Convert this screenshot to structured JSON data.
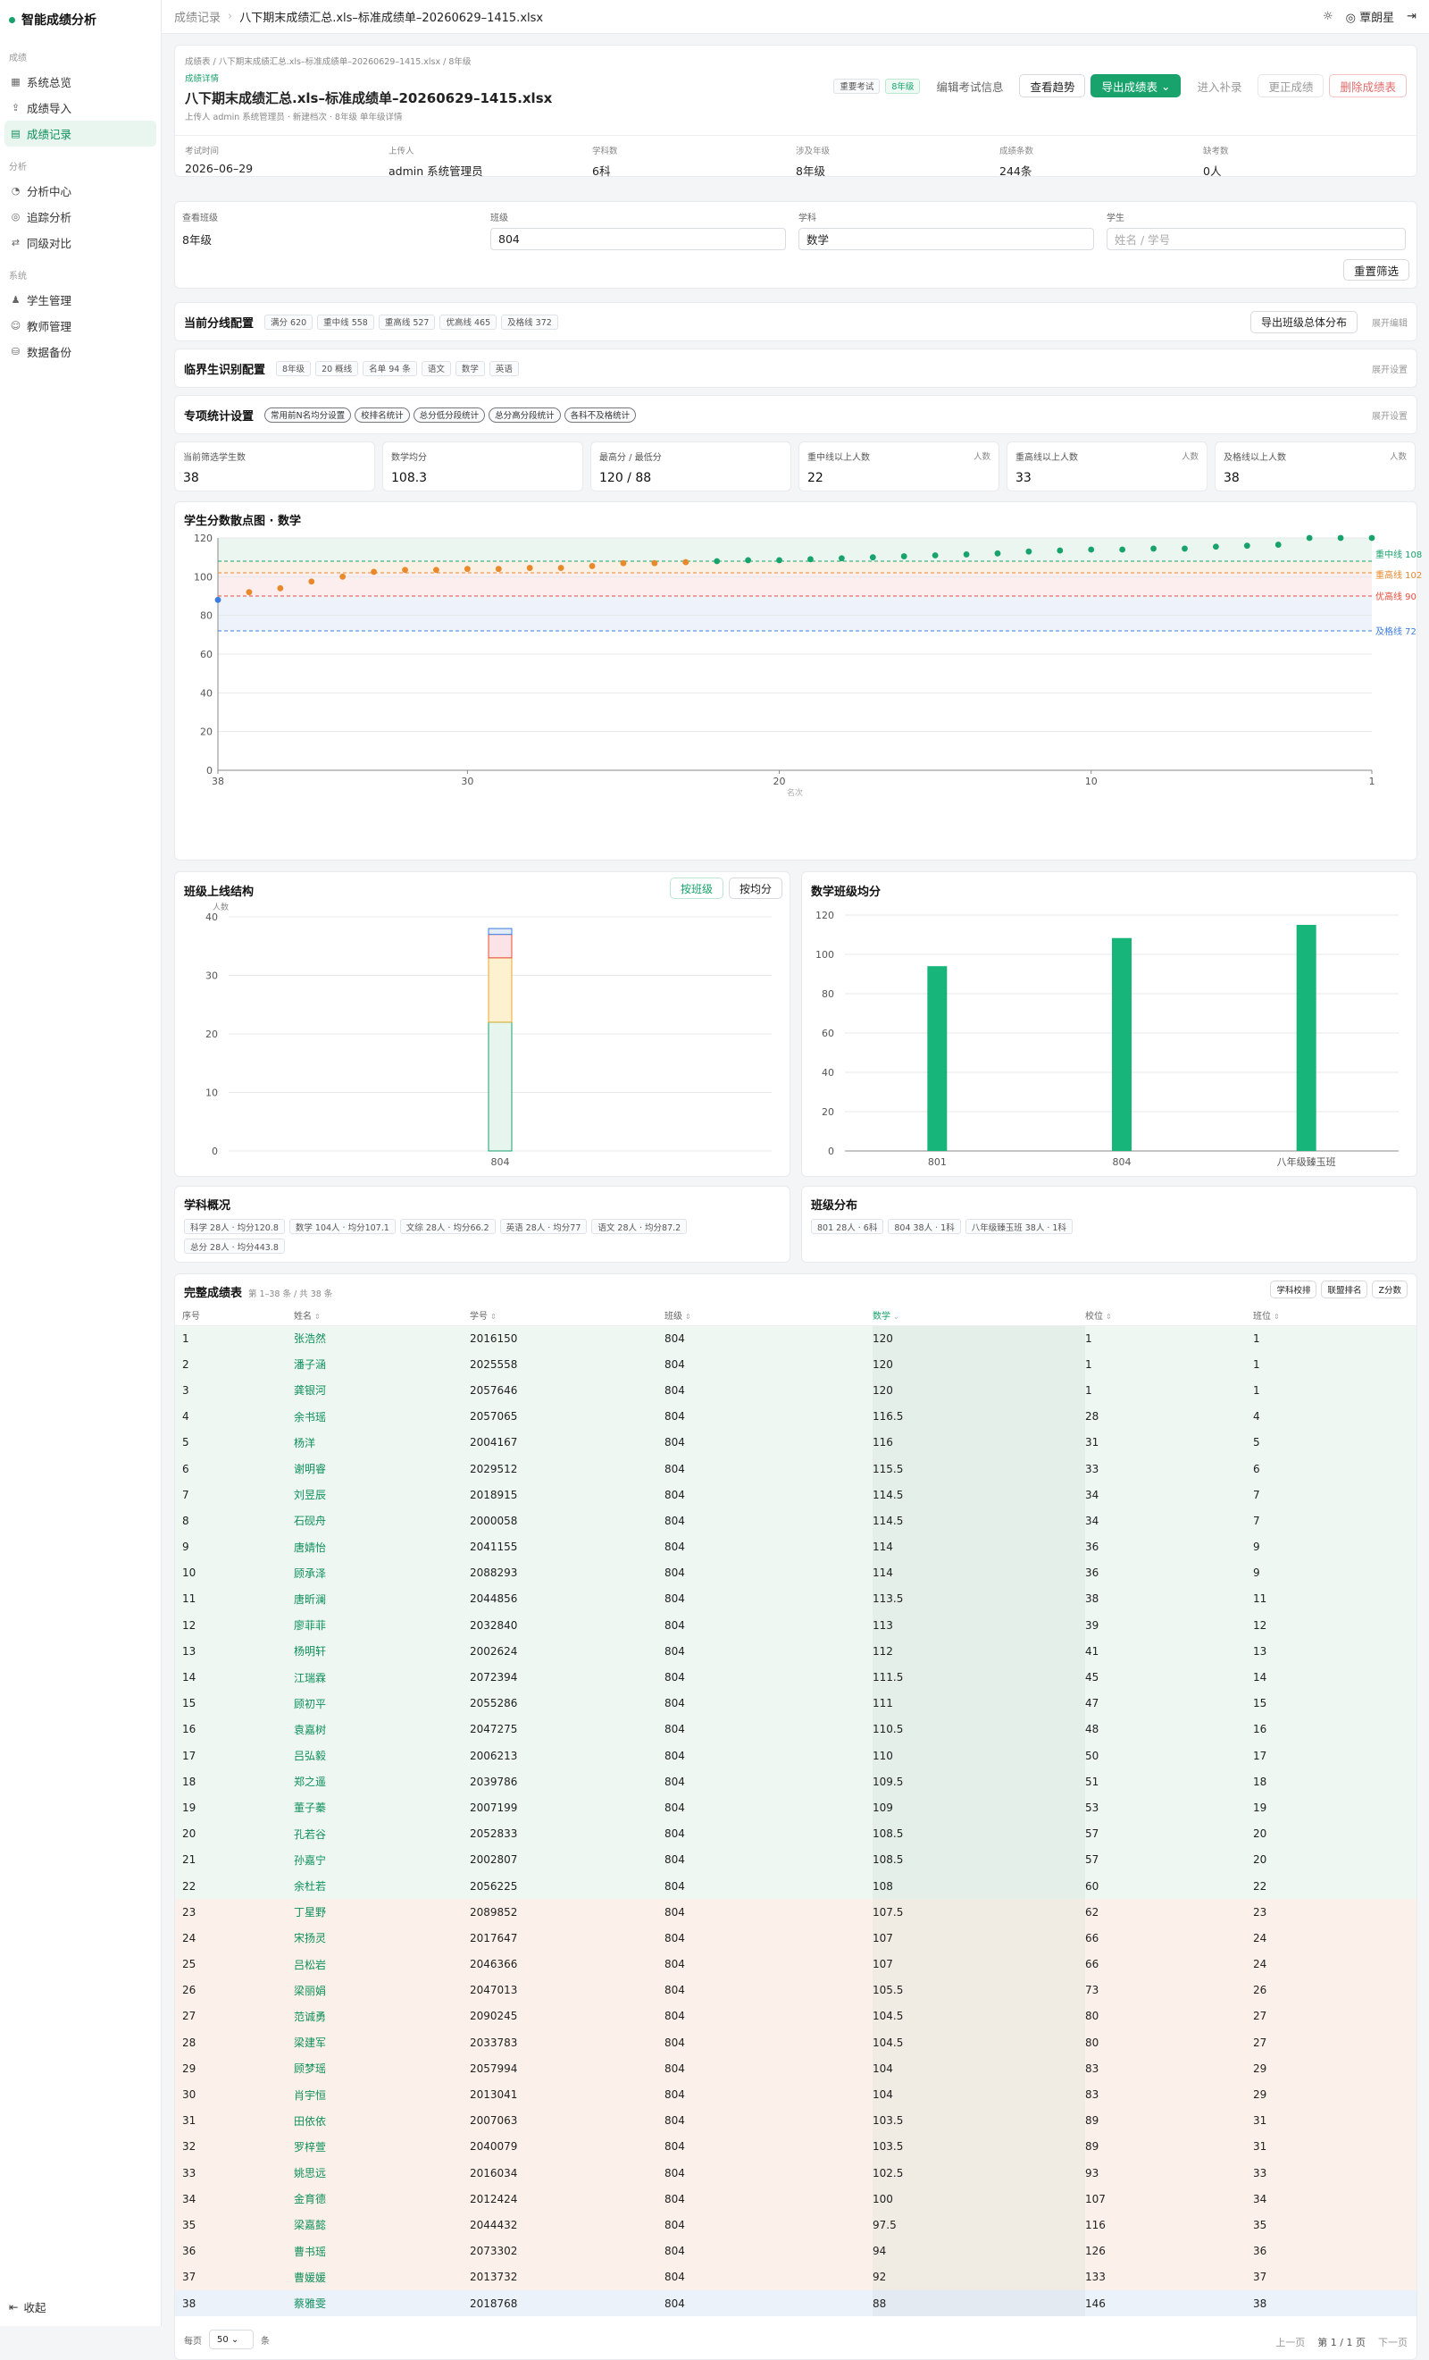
{
  "app": {
    "name": "智能成绩分析"
  },
  "sidebar": {
    "groups": [
      {
        "label": "成绩",
        "items": [
          {
            "label": "系统总览",
            "icon": "grid-icon"
          },
          {
            "label": "成绩导入",
            "icon": "upload-icon"
          },
          {
            "label": "成绩记录",
            "icon": "doc-icon",
            "active": true
          }
        ]
      },
      {
        "label": "分析",
        "items": [
          {
            "label": "分析中心",
            "icon": "chart-icon"
          },
          {
            "label": "追踪分析",
            "icon": "target-icon"
          },
          {
            "label": "同级对比",
            "icon": "compare-icon"
          }
        ]
      },
      {
        "label": "系统",
        "items": [
          {
            "label": "学生管理",
            "icon": "users-icon"
          },
          {
            "label": "教师管理",
            "icon": "teacher-icon"
          },
          {
            "label": "数据备份",
            "icon": "database-icon"
          }
        ]
      }
    ],
    "collapse_label": "收起"
  },
  "topbar": {
    "crumb_parent": "成绩记录",
    "crumb_current": "八下期末成绩汇总.xls–标准成绩单–20260629–1415.xlsx",
    "user": "覃朗星"
  },
  "record": {
    "path": "成绩表 / 八下期末成绩汇总.xls–标准成绩单–20260629–1415.xlsx / 8年级",
    "sub_label": "成绩详情",
    "title": "八下期末成绩汇总.xls–标准成绩单–20260629–1415.xlsx",
    "meta": "上传人 admin 系统管理员 · 新建档次 · 8年级 单年级详情",
    "tags": [
      "重要考试",
      "8年级"
    ],
    "actions": {
      "edit": "编辑考试信息",
      "trend": "查看趋势",
      "export": "导出成绩表",
      "promote": "进入补录",
      "correct": "更正成绩",
      "delete": "删除成绩表"
    },
    "stats": [
      {
        "label": "考试时间",
        "value": "2026–06–29"
      },
      {
        "label": "上传人",
        "value": "admin 系统管理员"
      },
      {
        "label": "学科数",
        "value": "6科"
      },
      {
        "label": "涉及年级",
        "value": "8年级"
      },
      {
        "label": "成绩条数",
        "value": "244条"
      },
      {
        "label": "缺考数",
        "value": "0人"
      }
    ]
  },
  "filters": {
    "grade": {
      "label": "查看班级",
      "value": "8年级"
    },
    "class": {
      "label": "班级",
      "value": "804"
    },
    "subject": {
      "label": "学科",
      "value": "数学"
    },
    "student": {
      "label": "学生",
      "placeholder": "姓名 / 学号"
    },
    "reset": "重置筛选"
  },
  "score_lines": {
    "title": "当前分线配置",
    "tags": [
      "满分 620",
      "重中线 558",
      "重高线 527",
      "优高线 465",
      "及格线 372"
    ],
    "action": "导出班级总体分布",
    "expand": "展开编辑"
  },
  "critical": {
    "title": "临界生识别配置",
    "tags": [
      "8年级",
      "20 概线",
      "名单 94 条",
      "语文",
      "数学",
      "英语"
    ],
    "expand": "展开设置"
  },
  "special": {
    "title": "专项统计设置",
    "tags": [
      "常用前N名均分设置",
      "校排名统计",
      "总分低分段统计",
      "总分高分段统计",
      "各科不及格统计"
    ],
    "expand": "展开设置"
  },
  "kpis": [
    {
      "label": "当前筛选学生数",
      "value": "38",
      "unit": ""
    },
    {
      "label": "数学均分",
      "value": "108.3",
      "unit": ""
    },
    {
      "label": "最高分 / 最低分",
      "value": "120 / 88",
      "unit": ""
    },
    {
      "label": "重中线以上人数",
      "value": "22",
      "unit": "人数"
    },
    {
      "label": "重高线以上人数",
      "value": "33",
      "unit": "人数"
    },
    {
      "label": "及格线以上人数",
      "value": "38",
      "unit": "人数"
    }
  ],
  "scatter": {
    "title": "学生分数散点图 · 数学",
    "xlabel": "名次",
    "lines": [
      {
        "name": "重中线 108",
        "value": 108,
        "color": "#18a36c"
      },
      {
        "name": "重高线 102",
        "value": 102,
        "color": "#e8892b"
      },
      {
        "name": "优高线 90",
        "value": 90,
        "color": "#e84b3a"
      },
      {
        "name": "及格线 72",
        "value": 72,
        "color": "#3b7de0"
      }
    ]
  },
  "stack": {
    "title": "班级上线结构",
    "toggle": [
      "按班级",
      "按均分"
    ],
    "unit": "人数"
  },
  "avg": {
    "title": "数学班级均分"
  },
  "subject_overview": {
    "title": "学科概况",
    "tags": [
      "科学 28人 · 均分120.8",
      "数学 104人 · 均分107.1",
      "文综 28人 · 均分66.2",
      "英语 28人 · 均分77",
      "语文 28人 · 均分87.2",
      "总分 28人 · 均分443.8"
    ]
  },
  "class_dist": {
    "title": "班级分布",
    "tags": [
      "801 28人 · 6科",
      "804 38人 · 1科",
      "八年级臻玉班 38人 · 1科"
    ]
  },
  "table": {
    "title": "完整成绩表",
    "count": "第 1–38 条 / 共 38 条",
    "buttons": [
      "学科校排",
      "联盟排名",
      "Z分数"
    ],
    "headers": [
      "序号",
      "姓名",
      "学号",
      "班级",
      "数学",
      "校位",
      "班位"
    ],
    "rows": [
      [
        "1",
        "张浩然",
        "2016150",
        "804",
        "120",
        "1",
        "1"
      ],
      [
        "2",
        "潘子涵",
        "2025558",
        "804",
        "120",
        "1",
        "1"
      ],
      [
        "3",
        "龚银河",
        "2057646",
        "804",
        "120",
        "1",
        "1"
      ],
      [
        "4",
        "余书瑶",
        "2057065",
        "804",
        "116.5",
        "28",
        "4"
      ],
      [
        "5",
        "杨洋",
        "2004167",
        "804",
        "116",
        "31",
        "5"
      ],
      [
        "6",
        "谢明睿",
        "2029512",
        "804",
        "115.5",
        "33",
        "6"
      ],
      [
        "7",
        "刘昱辰",
        "2018915",
        "804",
        "114.5",
        "34",
        "7"
      ],
      [
        "8",
        "石砚舟",
        "2000058",
        "804",
        "114.5",
        "34",
        "7"
      ],
      [
        "9",
        "唐婧怡",
        "2041155",
        "804",
        "114",
        "36",
        "9"
      ],
      [
        "10",
        "顾承泽",
        "2088293",
        "804",
        "114",
        "36",
        "9"
      ],
      [
        "11",
        "唐昕澜",
        "2044856",
        "804",
        "113.5",
        "38",
        "11"
      ],
      [
        "12",
        "廖菲菲",
        "2032840",
        "804",
        "113",
        "39",
        "12"
      ],
      [
        "13",
        "杨明轩",
        "2002624",
        "804",
        "112",
        "41",
        "13"
      ],
      [
        "14",
        "江瑞霖",
        "2072394",
        "804",
        "111.5",
        "45",
        "14"
      ],
      [
        "15",
        "顾初平",
        "2055286",
        "804",
        "111",
        "47",
        "15"
      ],
      [
        "16",
        "袁嘉树",
        "2047275",
        "804",
        "110.5",
        "48",
        "16"
      ],
      [
        "17",
        "吕弘毅",
        "2006213",
        "804",
        "110",
        "50",
        "17"
      ],
      [
        "18",
        "郑之遥",
        "2039786",
        "804",
        "109.5",
        "51",
        "18"
      ],
      [
        "19",
        "董子蓁",
        "2007199",
        "804",
        "109",
        "53",
        "19"
      ],
      [
        "20",
        "孔若谷",
        "2052833",
        "804",
        "108.5",
        "57",
        "20"
      ],
      [
        "21",
        "孙嘉宁",
        "2002807",
        "804",
        "108.5",
        "57",
        "20"
      ],
      [
        "22",
        "余杜若",
        "2056225",
        "804",
        "108",
        "60",
        "22"
      ],
      [
        "23",
        "丁星野",
        "2089852",
        "804",
        "107.5",
        "62",
        "23"
      ],
      [
        "24",
        "宋扬灵",
        "2017647",
        "804",
        "107",
        "66",
        "24"
      ],
      [
        "25",
        "吕松岩",
        "2046366",
        "804",
        "107",
        "66",
        "24"
      ],
      [
        "26",
        "梁丽娟",
        "2047013",
        "804",
        "105.5",
        "73",
        "26"
      ],
      [
        "27",
        "范诚勇",
        "2090245",
        "804",
        "104.5",
        "80",
        "27"
      ],
      [
        "28",
        "梁建军",
        "2033783",
        "804",
        "104.5",
        "80",
        "27"
      ],
      [
        "29",
        "顾梦瑶",
        "2057994",
        "804",
        "104",
        "83",
        "29"
      ],
      [
        "30",
        "肖宇恒",
        "2013041",
        "804",
        "104",
        "83",
        "29"
      ],
      [
        "31",
        "田依依",
        "2007063",
        "804",
        "103.5",
        "89",
        "31"
      ],
      [
        "32",
        "罗梓萱",
        "2040079",
        "804",
        "103.5",
        "89",
        "31"
      ],
      [
        "33",
        "姚思远",
        "2016034",
        "804",
        "102.5",
        "93",
        "33"
      ],
      [
        "34",
        "金育德",
        "2012424",
        "804",
        "100",
        "107",
        "34"
      ],
      [
        "35",
        "梁嘉懿",
        "2044432",
        "804",
        "97.5",
        "116",
        "35"
      ],
      [
        "36",
        "曹书瑶",
        "2073302",
        "804",
        "94",
        "126",
        "36"
      ],
      [
        "37",
        "曹媛媛",
        "2013732",
        "804",
        "92",
        "133",
        "37"
      ],
      [
        "38",
        "蔡雅雯",
        "2018768",
        "804",
        "88",
        "146",
        "38"
      ]
    ]
  },
  "pager": {
    "per_page_label": "每页",
    "per_page": "50",
    "unit": "条",
    "prev": "上一页",
    "page": "第 1 / 1 页",
    "next": "下一页"
  },
  "chart_data": [
    {
      "type": "scatter",
      "title": "学生分数散点图 · 数学",
      "xlabel": "名次",
      "xlim": [
        38,
        1
      ],
      "ylim": [
        0,
        120
      ],
      "yticks": [
        0,
        20,
        40,
        60,
        80,
        100,
        120
      ],
      "xticks": [
        38,
        30,
        20,
        10,
        1
      ],
      "x": [
        38,
        37,
        36,
        35,
        34,
        33,
        32,
        31,
        30,
        29,
        28,
        27,
        26,
        25,
        24,
        23,
        22,
        21,
        20,
        19,
        18,
        17,
        16,
        15,
        14,
        13,
        12,
        11,
        10,
        9,
        8,
        7,
        6,
        5,
        4,
        3,
        2,
        1
      ],
      "y": [
        88,
        92,
        94,
        97.5,
        100,
        102.5,
        103.5,
        103.5,
        104,
        104,
        104.5,
        104.5,
        105.5,
        107,
        107,
        107.5,
        108,
        108.5,
        108.5,
        109,
        109.5,
        110,
        110.5,
        111,
        111.5,
        112,
        113,
        113.5,
        114,
        114,
        114.5,
        114.5,
        115.5,
        116,
        116.5,
        120,
        120,
        120
      ]
    },
    {
      "type": "bar",
      "title": "班级上线结构",
      "stacked": true,
      "categories": [
        "804"
      ],
      "ylim": [
        0,
        40
      ],
      "yticks": [
        0,
        10,
        20,
        30,
        40
      ],
      "series": [
        {
          "name": "重中线",
          "values": [
            22
          ]
        },
        {
          "name": "重高线",
          "values": [
            11
          ]
        },
        {
          "name": "优高线",
          "values": [
            4
          ]
        },
        {
          "name": "及格线",
          "values": [
            1
          ]
        }
      ]
    },
    {
      "type": "bar",
      "title": "数学班级均分",
      "categories": [
        "801",
        "804",
        "八年级臻玉班"
      ],
      "values": [
        94,
        108.3,
        115
      ],
      "ylim": [
        0,
        120
      ],
      "yticks": [
        0,
        20,
        40,
        60,
        80,
        100,
        120
      ]
    }
  ]
}
